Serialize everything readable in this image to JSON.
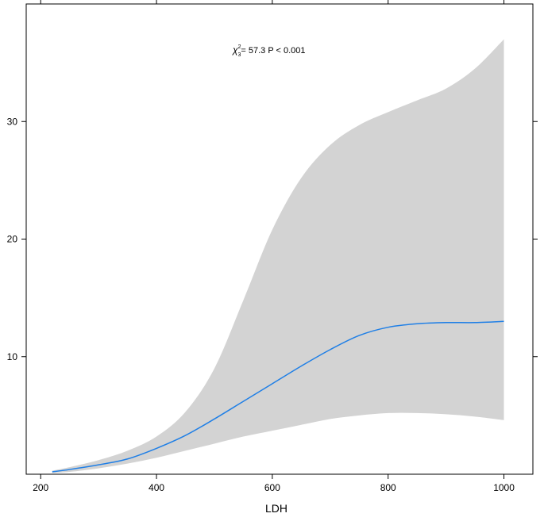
{
  "chart_data": {
    "type": "line",
    "title": "",
    "xlabel": "LDH",
    "ylabel": "",
    "xlim": [
      175,
      1050
    ],
    "ylim": [
      0,
      40
    ],
    "x_ticks": [
      200,
      400,
      600,
      800,
      1000
    ],
    "y_ticks": [
      10,
      20,
      30
    ],
    "x_tick_labels": [
      "200",
      "400",
      "600",
      "800",
      "1000"
    ],
    "y_tick_labels": [
      "10",
      "20",
      "30"
    ],
    "annotation": {
      "chi_symbol": "χ",
      "chi_sup": "2",
      "chi_sub": "3",
      "text": "= 57.3  P < 0.001"
    },
    "grid": false,
    "line_color": "#1f7fe6",
    "band_color": "#d3d3d3",
    "series": [
      {
        "x": [
          220,
          250,
          300,
          350,
          400,
          450,
          500,
          550,
          600,
          650,
          700,
          750,
          800,
          850,
          900,
          950,
          1000
        ],
        "y": [
          0.2,
          0.4,
          0.8,
          1.3,
          2.2,
          3.3,
          4.7,
          6.2,
          7.7,
          9.2,
          10.6,
          11.8,
          12.5,
          12.8,
          12.9,
          12.9,
          13.0
        ],
        "lower": [
          0.1,
          0.2,
          0.5,
          0.9,
          1.4,
          2.0,
          2.6,
          3.2,
          3.7,
          4.2,
          4.7,
          5.0,
          5.2,
          5.2,
          5.1,
          4.9,
          4.6
        ],
        "upper": [
          0.3,
          0.6,
          1.2,
          2.0,
          3.2,
          5.3,
          9.0,
          14.8,
          20.8,
          25.2,
          28.0,
          29.7,
          30.8,
          31.8,
          32.8,
          34.5,
          37.0
        ]
      }
    ]
  }
}
